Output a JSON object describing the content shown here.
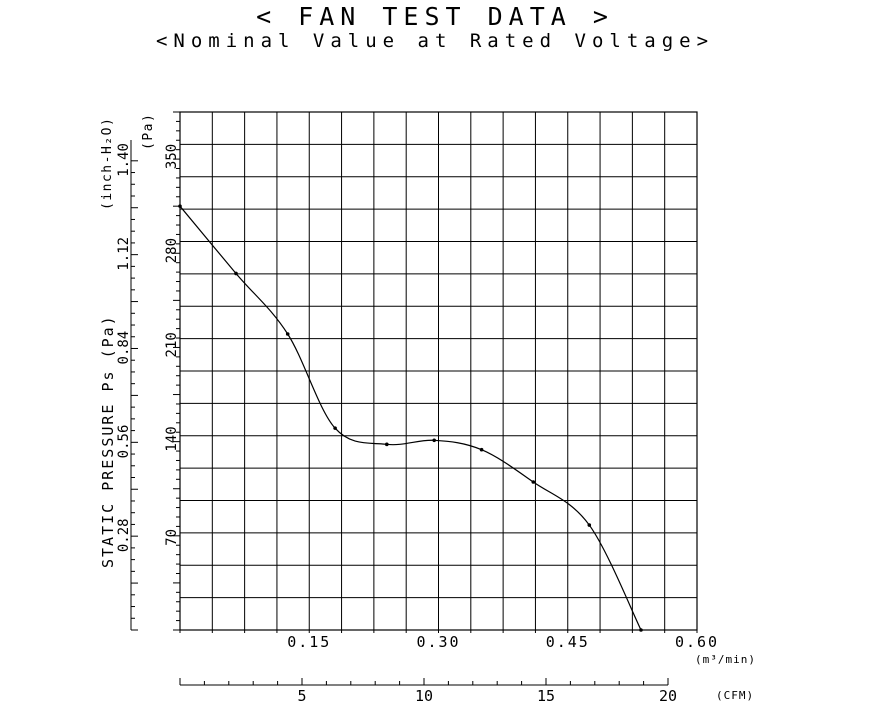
{
  "header": {
    "title": "< FAN TEST DATA >",
    "subtitle": "<Nominal Value at Rated Voltage>"
  },
  "chart_data": {
    "type": "line",
    "title": "< FAN TEST DATA >",
    "subtitle": "<Nominal Value at Rated Voltage>",
    "xlabel": "(m³/min)",
    "ylabel": "STATIC PRESSURE Ps (Pa)",
    "x_unit": "(m³/min)",
    "y_unit_pa": "(Pa)",
    "y_unit_inch": "(inch-H₂O)",
    "x2_unit": "(CFM)",
    "xlim": [
      0,
      0.6
    ],
    "ylim": [
      0,
      385
    ],
    "x_ticks": [
      {
        "value": 0.15,
        "label": "0.15"
      },
      {
        "value": 0.3,
        "label": "0.30"
      },
      {
        "value": 0.45,
        "label": "0.45"
      },
      {
        "value": 0.6,
        "label": "0.60"
      }
    ],
    "y_ticks_pa": [
      {
        "value": 70,
        "label": "70"
      },
      {
        "value": 140,
        "label": "140"
      },
      {
        "value": 210,
        "label": "210"
      },
      {
        "value": 280,
        "label": "280"
      },
      {
        "value": 350,
        "label": "350"
      }
    ],
    "y_ticks_inch": [
      {
        "value": 0.28,
        "label": "0.28"
      },
      {
        "value": 0.56,
        "label": "0.56"
      },
      {
        "value": 0.84,
        "label": "0.84"
      },
      {
        "value": 1.12,
        "label": "1.12"
      },
      {
        "value": 1.4,
        "label": "1.40"
      }
    ],
    "x2_ticks": [
      {
        "value": 5,
        "label": "5"
      },
      {
        "value": 10,
        "label": "10"
      },
      {
        "value": 15,
        "label": "15"
      },
      {
        "value": 20,
        "label": "20"
      }
    ],
    "grid": true,
    "series": [
      {
        "x": [
          0.0,
          0.065,
          0.125,
          0.18,
          0.24,
          0.295,
          0.35,
          0.41,
          0.475,
          0.535
        ],
        "y": [
          315,
          265,
          220,
          150,
          138,
          141,
          134,
          110,
          78,
          0
        ]
      }
    ]
  }
}
